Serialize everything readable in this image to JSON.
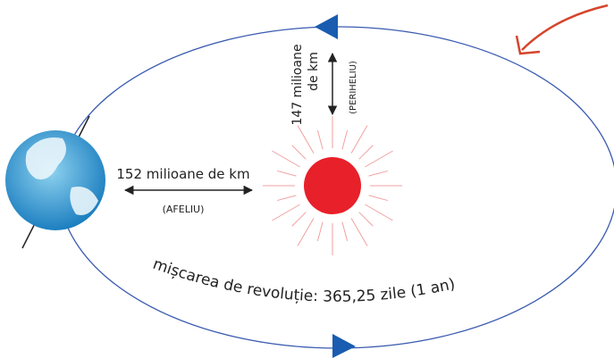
{
  "distances": {
    "aphelion": {
      "label": "152 milioane de km",
      "name": "(AFELIU)"
    },
    "perihelion": {
      "lines": [
        "147 milioane",
        "de km"
      ],
      "name": "(PERIHELIU)"
    }
  },
  "orbit": {
    "caption": "mișcarea de revoluție: 365,25 zile (1 an)"
  }
}
